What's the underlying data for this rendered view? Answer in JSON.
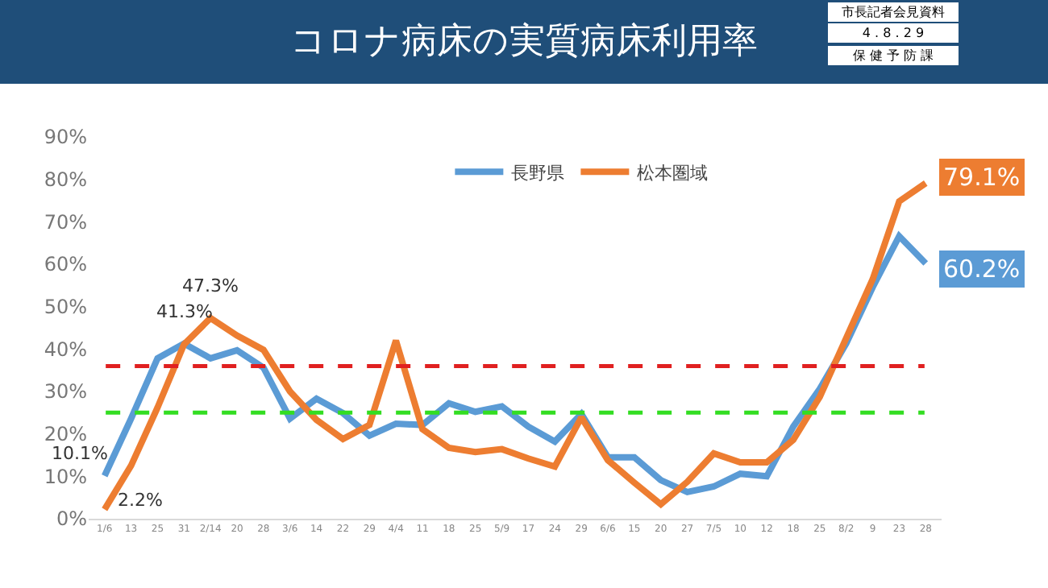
{
  "chart_data": {
    "type": "line",
    "title": "コロナ病床の実質病床利用率",
    "categories": [
      "1/6",
      "13",
      "25",
      "31",
      "2/14",
      "20",
      "28",
      "3/6",
      "14",
      "22",
      "29",
      "4/4",
      "11",
      "18",
      "25",
      "5/9",
      "17",
      "24",
      "29",
      "6/6",
      "15",
      "20",
      "27",
      "7/5",
      "10",
      "12",
      "18",
      "25",
      "8/2",
      "9",
      "23",
      "28"
    ],
    "series": [
      {
        "name": "長野県",
        "color": "#5b9bd5",
        "values": [
          10.1,
          23.6,
          37.8,
          41.3,
          37.8,
          39.7,
          35.6,
          23.6,
          28.3,
          24.9,
          19.6,
          22.4,
          22.1,
          27.2,
          25.2,
          26.5,
          21.7,
          18.2,
          24.7,
          14.5,
          14.5,
          9.1,
          6.3,
          7.6,
          10.6,
          10.0,
          21.7,
          30.6,
          41.3,
          54.6,
          66.6,
          60.2
        ],
        "value_labels": [
          "10.1%",
          null,
          null,
          "41.3%",
          null,
          null,
          null,
          null,
          null,
          null,
          null,
          null,
          null,
          null,
          null,
          null,
          null,
          null,
          null,
          null,
          null,
          null,
          null,
          null,
          null,
          null,
          null,
          null,
          null,
          null,
          null,
          "60.2%"
        ]
      },
      {
        "name": "松本圏域",
        "color": "#ed7d31",
        "values": [
          2.2,
          12.5,
          26.2,
          41.1,
          47.3,
          43.2,
          39.8,
          30.0,
          23.3,
          18.8,
          22.1,
          42.0,
          21.1,
          16.7,
          15.7,
          16.4,
          14.2,
          12.3,
          23.9,
          13.8,
          8.5,
          3.4,
          8.7,
          15.4,
          13.3,
          13.3,
          18.6,
          28.7,
          42.6,
          56.5,
          74.8,
          79.1
        ],
        "value_labels": [
          "2.2%",
          null,
          null,
          null,
          "47.3%",
          null,
          null,
          null,
          null,
          null,
          null,
          null,
          null,
          null,
          null,
          null,
          null,
          null,
          null,
          null,
          null,
          null,
          null,
          null,
          null,
          null,
          null,
          null,
          null,
          null,
          null,
          "79.1%"
        ]
      }
    ],
    "ylim": [
      0,
      90
    ],
    "yticks": [
      {
        "value": 0,
        "label": "0%"
      },
      {
        "value": 10,
        "label": "10%"
      },
      {
        "value": 20,
        "label": "20%"
      },
      {
        "value": 30,
        "label": "30%"
      },
      {
        "value": 40,
        "label": "40%"
      },
      {
        "value": 50,
        "label": "50%"
      },
      {
        "value": 60,
        "label": "60%"
      },
      {
        "value": 70,
        "label": "70%"
      },
      {
        "value": 80,
        "label": "80%"
      },
      {
        "value": 90,
        "label": "90%"
      }
    ],
    "ref_lines": [
      {
        "axis": "y",
        "value": 36,
        "color": "#e02020",
        "line_style": "dashed"
      },
      {
        "axis": "y",
        "value": 25,
        "color": "#33dd22",
        "line_style": "dashed"
      }
    ],
    "annotations": [
      "市長記者会見資料",
      "4 . 8 . 2 9",
      "保 健 予 防 課"
    ],
    "grid": false,
    "legend": "top",
    "marker": "none",
    "line_style": "solid"
  }
}
